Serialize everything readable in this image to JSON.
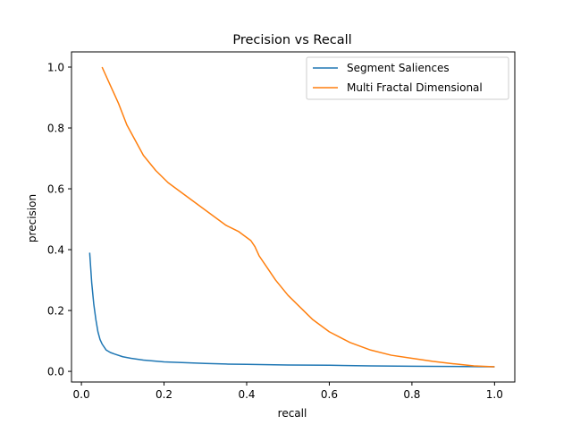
{
  "chart_data": {
    "type": "line",
    "title": "Precision vs Recall",
    "xlabel": "recall",
    "ylabel": "precision",
    "xlim": [
      -0.024,
      1.049
    ],
    "ylim": [
      -0.035,
      1.05
    ],
    "xticks": [
      0.0,
      0.2,
      0.4,
      0.6,
      0.8,
      1.0
    ],
    "xtick_labels": [
      "0.0",
      "0.2",
      "0.4",
      "0.6",
      "0.8",
      "1.0"
    ],
    "yticks": [
      0.0,
      0.2,
      0.4,
      0.6,
      0.8,
      1.0
    ],
    "ytick_labels": [
      "0.0",
      "0.2",
      "0.4",
      "0.6",
      "0.8",
      "1.0"
    ],
    "grid": false,
    "legend_position": "top-right",
    "series": [
      {
        "name": "Segment Saliences",
        "color": "#1f77b4",
        "x": [
          0.02,
          0.025,
          0.03,
          0.035,
          0.04,
          0.045,
          0.05,
          0.06,
          0.07,
          0.08,
          0.1,
          0.12,
          0.15,
          0.2,
          0.3,
          0.35,
          0.4,
          0.5,
          0.6,
          0.7,
          0.8,
          0.9,
          1.0
        ],
        "y": [
          0.39,
          0.29,
          0.22,
          0.17,
          0.13,
          0.105,
          0.09,
          0.07,
          0.062,
          0.057,
          0.048,
          0.043,
          0.037,
          0.031,
          0.026,
          0.024,
          0.023,
          0.021,
          0.02,
          0.018,
          0.017,
          0.016,
          0.015
        ]
      },
      {
        "name": "Multi Fractal Dimensional",
        "color": "#ff7f0e",
        "x": [
          0.05,
          0.07,
          0.09,
          0.11,
          0.13,
          0.15,
          0.18,
          0.21,
          0.25,
          0.3,
          0.35,
          0.38,
          0.4,
          0.41,
          0.42,
          0.43,
          0.45,
          0.47,
          0.5,
          0.53,
          0.56,
          0.6,
          0.65,
          0.7,
          0.75,
          0.8,
          0.85,
          0.9,
          0.95,
          1.0
        ],
        "y": [
          1.0,
          0.94,
          0.88,
          0.81,
          0.76,
          0.71,
          0.66,
          0.62,
          0.58,
          0.53,
          0.48,
          0.46,
          0.44,
          0.43,
          0.41,
          0.38,
          0.34,
          0.3,
          0.25,
          0.21,
          0.17,
          0.13,
          0.095,
          0.07,
          0.053,
          0.043,
          0.033,
          0.025,
          0.018,
          0.015
        ]
      }
    ]
  }
}
